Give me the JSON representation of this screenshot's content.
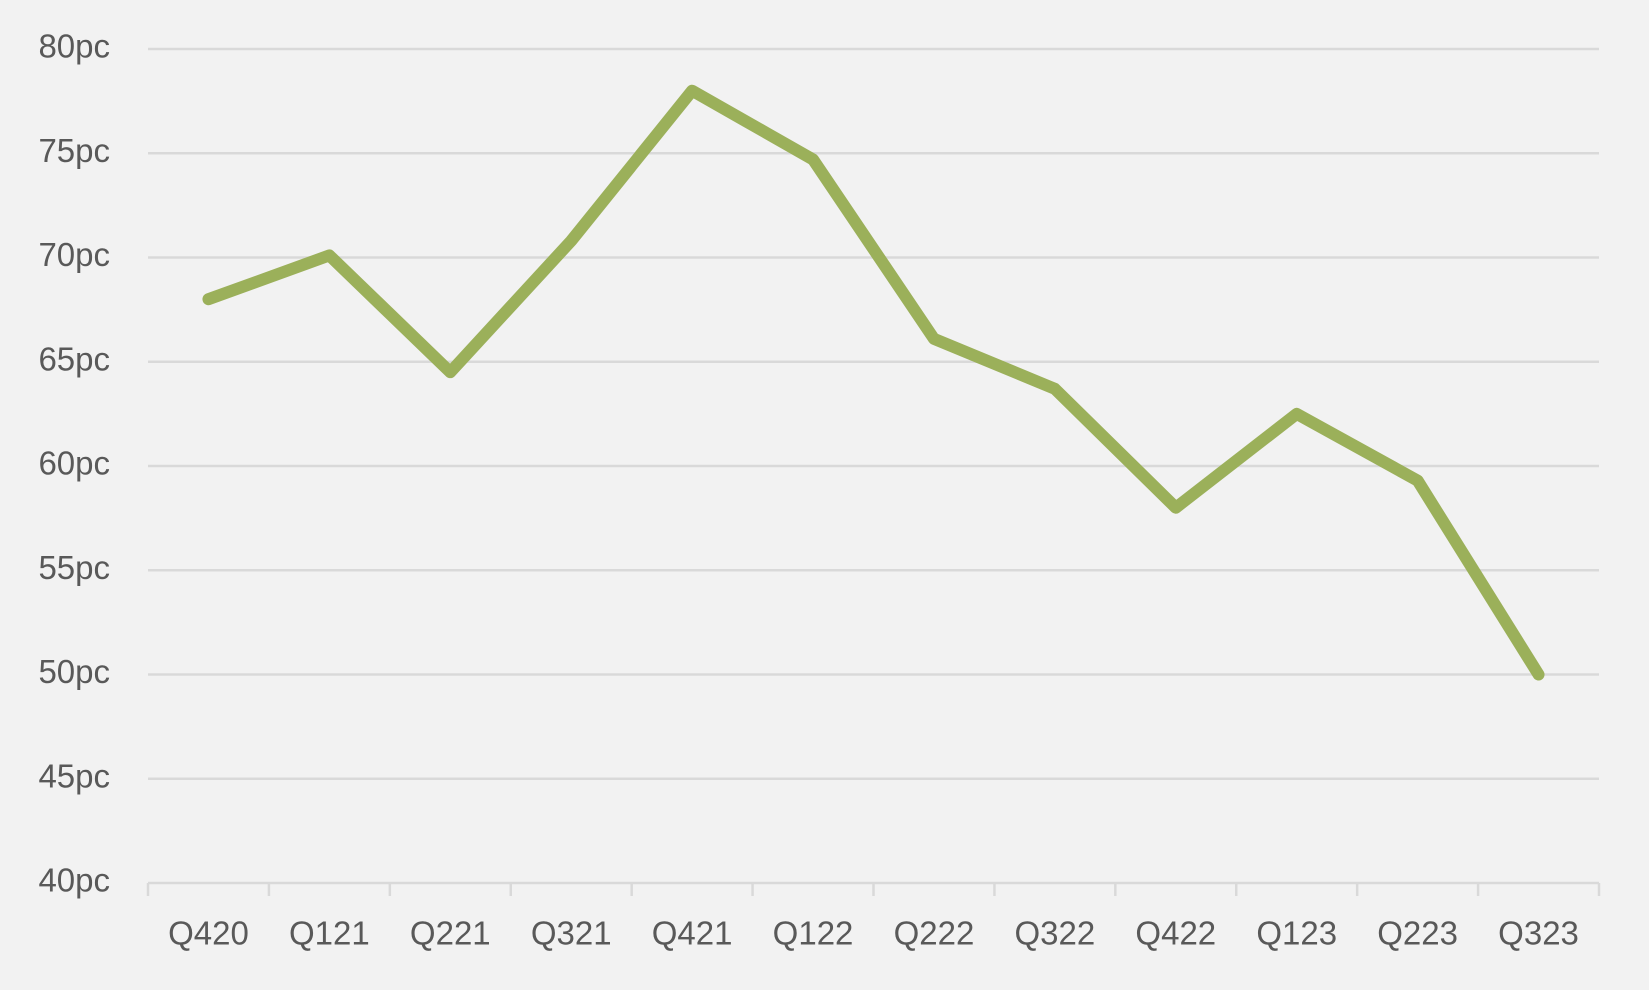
{
  "chart_data": {
    "type": "line",
    "categories": [
      "Q420",
      "Q121",
      "Q221",
      "Q321",
      "Q421",
      "Q122",
      "Q222",
      "Q322",
      "Q422",
      "Q123",
      "Q223",
      "Q323"
    ],
    "series": [
      {
        "color": "#9bb05a",
        "values": [
          68.0,
          70.1,
          64.5,
          70.8,
          78.0,
          74.7,
          66.1,
          63.7,
          58.0,
          62.5,
          59.3,
          50.0
        ]
      }
    ],
    "ylim": [
      40,
      80
    ],
    "yticks": [
      {
        "value": 40,
        "label": "40pc"
      },
      {
        "value": 45,
        "label": "45pc"
      },
      {
        "value": 50,
        "label": "50pc"
      },
      {
        "value": 55,
        "label": "55pc"
      },
      {
        "value": 60,
        "label": "60pc"
      },
      {
        "value": 65,
        "label": "65pc"
      },
      {
        "value": 70,
        "label": "70pc"
      },
      {
        "value": 75,
        "label": "75pc"
      },
      {
        "value": 80,
        "label": "80pc"
      }
    ],
    "grid": true
  }
}
